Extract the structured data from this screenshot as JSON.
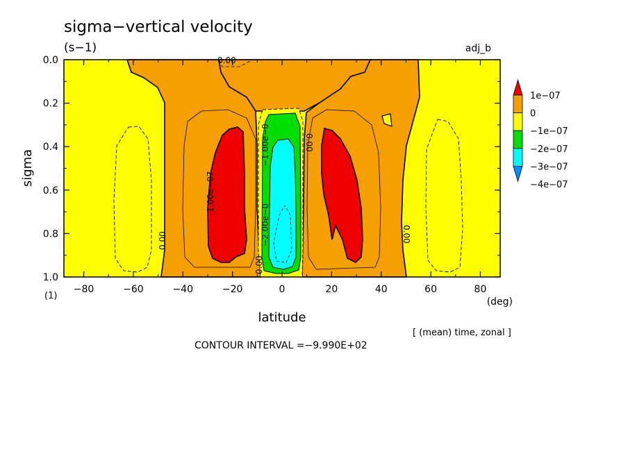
{
  "chart_data": {
    "type": "heatmap",
    "title": "sigma−vertical velocity",
    "units": "(s−1)",
    "run_label": "adj_b",
    "xlabel": "latitude",
    "x_unit": "(deg)",
    "ylabel": "sigma",
    "y_unit": "(1)",
    "xlim": [
      -88,
      88
    ],
    "ylim": [
      1.0,
      0.0
    ],
    "xticks": [
      -80,
      -60,
      -40,
      -20,
      0,
      20,
      40,
      60,
      80
    ],
    "yticks": [
      0.0,
      0.2,
      0.4,
      0.6,
      0.8,
      1.0
    ],
    "xtick_labels": [
      "−80",
      "−60",
      "−40",
      "−20",
      "0",
      "20",
      "40",
      "60",
      "80"
    ],
    "ytick_labels": [
      "0.0",
      "0.2",
      "0.4",
      "0.6",
      "0.8",
      "1.0"
    ],
    "averaging_note": "[ (mean) time, zonal ]",
    "contour_interval_text": "CONTOUR INTERVAL =−9.990E+02",
    "color_levels": [
      {
        "label": "1e−07",
        "color": "#ee0000"
      },
      {
        "label": "0",
        "color": "#f5a000"
      },
      {
        "label": "−1e−07",
        "color": "#ffff00"
      },
      {
        "label": "−2e−07",
        "color": "#00dd00"
      },
      {
        "label": "−3e−07",
        "color": "#00ffff"
      },
      {
        "label": "−4e−07",
        "color": "#0090ff"
      }
    ],
    "colorbar_ticks": [
      "1e−07",
      "0",
      "−1e−07",
      "−2e−07",
      "−3e−07",
      "−4e−07"
    ],
    "contour_labels": [
      {
        "text": "0.00",
        "lat": -48,
        "sigma": 0.83
      },
      {
        "text": "0.00",
        "lat": -10,
        "sigma": 0.95
      },
      {
        "text": "0.00",
        "lat": 11,
        "sigma": 0.38
      },
      {
        "text": "0.00",
        "lat": 51,
        "sigma": 0.78
      },
      {
        "text": "0.00",
        "lat": -24,
        "sigma": 0.0
      },
      {
        "text": "1.00e−07",
        "lat": -28,
        "sigma": 0.59
      },
      {
        "text": "−1.00e−0",
        "lat": -6,
        "sigma": 0.39
      },
      {
        "text": "−2.00e−0",
        "lat": -6,
        "sigma": 0.74
      }
    ],
    "regions": [
      {
        "name": "positive-south",
        "level": "1e−07",
        "lat_range": [
          -30,
          -16
        ],
        "sigma_range": [
          0.31,
          0.93
        ]
      },
      {
        "name": "positive-north",
        "level": "1e−07",
        "lat_range": [
          17,
          32
        ],
        "sigma_range": [
          0.31,
          0.93
        ]
      },
      {
        "name": "equatorial-min",
        "level": "−3e−07",
        "lat_range": [
          -4,
          5
        ],
        "sigma_range": [
          0.38,
          0.95
        ]
      }
    ]
  }
}
